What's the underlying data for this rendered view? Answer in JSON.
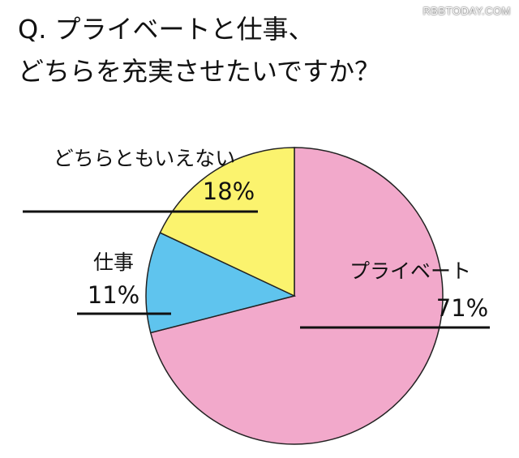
{
  "watermark": "RBBTODAY.COM",
  "title_line1": "Q. プライベートと仕事、",
  "title_line2": "どちらを充実させたいですか？",
  "chart_data": {
    "type": "pie",
    "title": "Q. プライベートと仕事、どちらを充実させたいですか？",
    "slices": [
      {
        "label": "プライベート",
        "value": 71,
        "value_label": "71%",
        "color": "#f2a9cb"
      },
      {
        "label": "仕事",
        "value": 11,
        "value_label": "11%",
        "color": "#5fc4ee"
      },
      {
        "label": "どちらともいえない",
        "value": 18,
        "value_label": "18%",
        "color": "#fbf36e"
      }
    ]
  }
}
